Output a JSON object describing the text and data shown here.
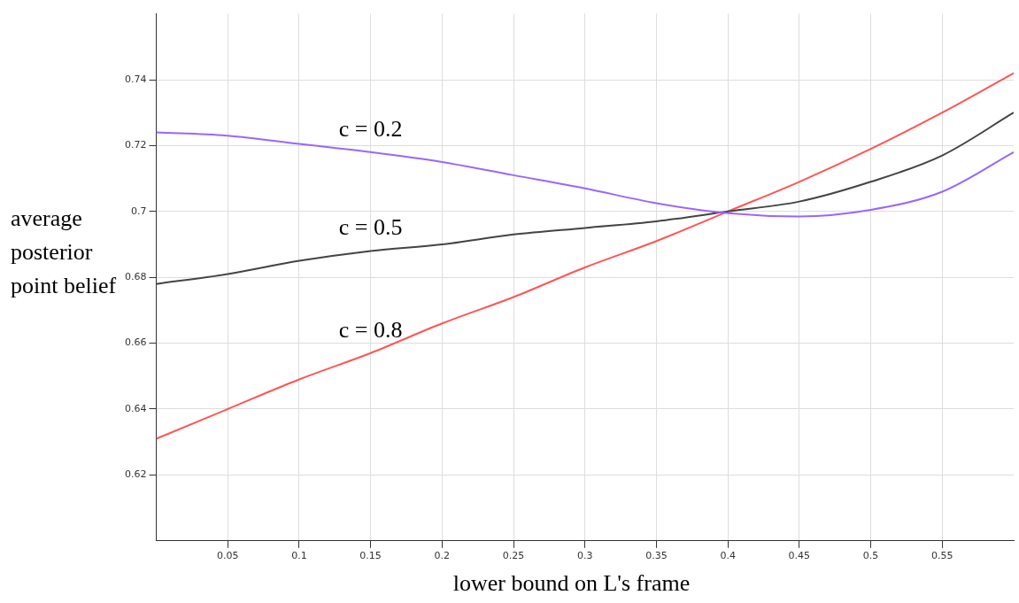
{
  "chart_data": {
    "type": "line",
    "xlabel": "lower bound on L's frame",
    "ylabel": "average posterior point belief",
    "x": [
      0,
      0.05,
      0.1,
      0.15,
      0.2,
      0.25,
      0.3,
      0.35,
      0.4,
      0.45,
      0.5,
      0.55,
      0.6
    ],
    "series": [
      {
        "name": "c = 0.2",
        "color": "#9966ff",
        "values": [
          0.724,
          0.723,
          0.7205,
          0.718,
          0.715,
          0.711,
          0.707,
          0.7025,
          0.6995,
          0.6985,
          0.7005,
          0.706,
          0.718
        ]
      },
      {
        "name": "c = 0.5",
        "color": "#444444",
        "values": [
          0.678,
          0.681,
          0.685,
          0.688,
          0.69,
          0.693,
          0.695,
          0.697,
          0.7,
          0.703,
          0.709,
          0.717,
          0.73
        ]
      },
      {
        "name": "c = 0.8",
        "color": "#ff5555",
        "values": [
          0.631,
          0.64,
          0.649,
          0.657,
          0.666,
          0.674,
          0.683,
          0.691,
          0.7,
          0.709,
          0.719,
          0.73,
          0.742
        ]
      }
    ],
    "xlim": [
      0,
      0.6
    ],
    "xticks": [
      0.05,
      0.1,
      0.15,
      0.2,
      0.25,
      0.3,
      0.35,
      0.4,
      0.45,
      0.5,
      0.55
    ],
    "ylim": [
      0.6,
      0.76
    ],
    "yticks": [
      0.62,
      0.64,
      0.66,
      0.68,
      0.7,
      0.72,
      0.74
    ],
    "grid": true,
    "legend": false
  }
}
